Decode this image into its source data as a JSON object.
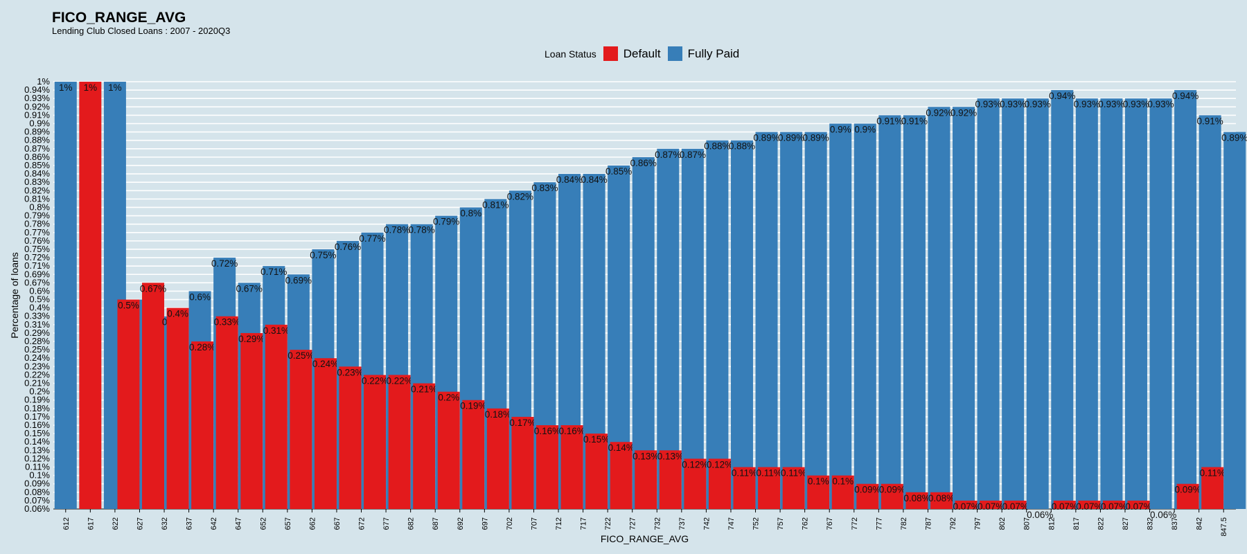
{
  "chart_data": {
    "type": "bar",
    "title": "FICO_RANGE_AVG",
    "subtitle": "Lending Club Closed Loans : 2007 - 2020Q3",
    "xlabel": "FICO_RANGE_AVG",
    "ylabel": "Percentage of loans",
    "legend_title": "Loan Status",
    "legend_position": "top",
    "grid": true,
    "colors": {
      "Default": "#e31a1c",
      "Fully Paid": "#377eb8",
      "background": "#d5e4eb",
      "grid": "#ffffff"
    },
    "y_tick_labels": [
      "0.06%",
      "0.07%",
      "0.08%",
      "0.09%",
      "0.1%",
      "0.11%",
      "0.12%",
      "0.13%",
      "0.14%",
      "0.15%",
      "0.16%",
      "0.17%",
      "0.18%",
      "0.19%",
      "0.2%",
      "0.21%",
      "0.22%",
      "0.23%",
      "0.24%",
      "0.25%",
      "0.28%",
      "0.29%",
      "0.31%",
      "0.33%",
      "0.4%",
      "0.5%",
      "0.6%",
      "0.67%",
      "0.69%",
      "0.71%",
      "0.72%",
      "0.75%",
      "0.76%",
      "0.77%",
      "0.78%",
      "0.79%",
      "0.8%",
      "0.81%",
      "0.82%",
      "0.83%",
      "0.84%",
      "0.85%",
      "0.86%",
      "0.87%",
      "0.88%",
      "0.89%",
      "0.9%",
      "0.91%",
      "0.92%",
      "0.93%",
      "0.94%",
      "1%"
    ],
    "categories": [
      "612",
      "617",
      "622",
      "627",
      "632",
      "637",
      "642",
      "647",
      "652",
      "657",
      "662",
      "667",
      "672",
      "677",
      "682",
      "687",
      "692",
      "697",
      "702",
      "707",
      "712",
      "717",
      "722",
      "727",
      "732",
      "737",
      "742",
      "747",
      "752",
      "757",
      "762",
      "767",
      "772",
      "777",
      "782",
      "787",
      "792",
      "797",
      "802",
      "807",
      "812",
      "817",
      "822",
      "827",
      "832",
      "837",
      "842",
      "847.5"
    ],
    "series": [
      {
        "name": "Default",
        "values": [
          null,
          1,
          null,
          0.5,
          0.67,
          0.4,
          0.28,
          0.33,
          0.29,
          0.31,
          0.25,
          0.24,
          0.23,
          0.22,
          0.22,
          0.21,
          0.2,
          0.19,
          0.18,
          0.17,
          0.16,
          0.16,
          0.15,
          0.14,
          0.13,
          0.13,
          0.12,
          0.12,
          0.11,
          0.11,
          0.11,
          0.1,
          0.1,
          0.09,
          0.09,
          0.08,
          0.08,
          0.07,
          0.07,
          0.07,
          0.06,
          0.07,
          0.07,
          0.07,
          0.07,
          0.06,
          0.09,
          0.11
        ],
        "labels": [
          null,
          "1%",
          null,
          "0.5%",
          "0.67%",
          "0.4%",
          "0.28%",
          "0.33%",
          "0.29%",
          "0.31%",
          "0.25%",
          "0.24%",
          "0.23%",
          "0.22%",
          "0.22%",
          "0.21%",
          "0.2%",
          "0.19%",
          "0.18%",
          "0.17%",
          "0.16%",
          "0.16%",
          "0.15%",
          "0.14%",
          "0.13%",
          "0.13%",
          "0.12%",
          "0.12%",
          "0.11%",
          "0.11%",
          "0.11%",
          "0.1%",
          "0.1%",
          "0.09%",
          "0.09%",
          "0.08%",
          "0.08%",
          "0.07%",
          "0.07%",
          "0.07%",
          "0.06%",
          "0.07%",
          "0.07%",
          "0.07%",
          "0.07%",
          "0.06%",
          "0.09%",
          "0.11%"
        ]
      },
      {
        "name": "Fully Paid",
        "values": [
          1,
          null,
          1,
          0.5,
          0.33,
          0.6,
          0.72,
          0.67,
          0.71,
          0.69,
          0.75,
          0.76,
          0.77,
          0.78,
          0.78,
          0.79,
          0.8,
          0.81,
          0.82,
          0.83,
          0.84,
          0.84,
          0.85,
          0.86,
          0.87,
          0.87,
          0.88,
          0.88,
          0.89,
          0.89,
          0.89,
          0.9,
          0.9,
          0.91,
          0.91,
          0.92,
          0.92,
          0.93,
          0.93,
          0.93,
          0.94,
          0.93,
          0.93,
          0.93,
          0.93,
          0.94,
          0.91,
          0.89
        ],
        "labels": [
          "1%",
          null,
          "1%",
          null,
          "0.33%",
          "0.6%",
          "0.72%",
          "0.67%",
          "0.71%",
          "0.69%",
          "0.75%",
          "0.76%",
          "0.77%",
          "0.78%",
          "0.78%",
          "0.79%",
          "0.8%",
          "0.81%",
          "0.82%",
          "0.83%",
          "0.84%",
          "0.84%",
          "0.85%",
          "0.86%",
          "0.87%",
          "0.87%",
          "0.88%",
          "0.88%",
          "0.89%",
          "0.89%",
          "0.89%",
          "0.9%",
          "0.9%",
          "0.91%",
          "0.91%",
          "0.92%",
          "0.92%",
          "0.93%",
          "0.93%",
          "0.93%",
          "0.94%",
          "0.93%",
          "0.93%",
          "0.93%",
          "0.93%",
          "0.94%",
          "0.91%",
          "0.89%"
        ]
      }
    ]
  }
}
